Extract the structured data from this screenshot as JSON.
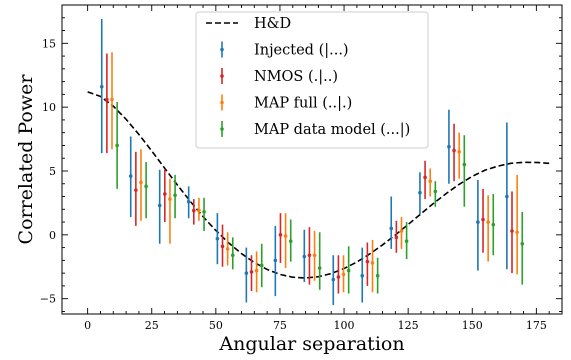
{
  "chart_data": {
    "type": "scatter",
    "title": "",
    "xlabel": "Angular separation",
    "ylabel": "Correlated Power",
    "xlim": [
      -10,
      185
    ],
    "ylim": [
      -6.2,
      18
    ],
    "xticks": [
      0,
      25,
      50,
      75,
      100,
      125,
      150,
      175
    ],
    "yticks": [
      -5,
      0,
      5,
      10,
      15
    ],
    "legend_position": "top-center",
    "curve": {
      "name": "H&D",
      "style": "dashed",
      "color": "#000000",
      "x": [
        0,
        5,
        10,
        15,
        20,
        25,
        30,
        35,
        40,
        45,
        50,
        55,
        60,
        65,
        70,
        75,
        80,
        85,
        90,
        95,
        100,
        105,
        110,
        115,
        120,
        125,
        130,
        135,
        140,
        145,
        150,
        155,
        160,
        165,
        170,
        175,
        180
      ],
      "y": [
        11.2,
        10.84,
        10.08,
        9.05,
        7.86,
        6.57,
        5.23,
        3.9,
        2.63,
        1.43,
        0.34,
        -0.63,
        -1.47,
        -2.17,
        -2.71,
        -3.1,
        -3.32,
        -3.38,
        -3.28,
        -3.03,
        -2.64,
        -2.13,
        -1.5,
        -0.79,
        -0.01,
        0.81,
        1.65,
        2.48,
        3.26,
        3.97,
        4.58,
        5.07,
        5.38,
        5.6,
        5.68,
        5.67,
        5.6
      ]
    },
    "bins_x": [
      8.5,
      19.8,
      31.1,
      42.4,
      53.6,
      64.9,
      76.2,
      87.5,
      98.8,
      110.1,
      121.4,
      132.6,
      143.9,
      155.2,
      166.5
    ],
    "series": [
      {
        "name": "Injected (|...)",
        "color": "#1f77b4",
        "y": [
          11.6,
          4.6,
          2.3,
          2.6,
          -0.3,
          -3.0,
          -2.0,
          -1.7,
          -3.5,
          -3.2,
          0.5,
          3.3,
          6.9,
          1.0,
          3.0
        ],
        "err_low": [
          6.4,
          1.4,
          -0.7,
          1.3,
          -2.3,
          -5.3,
          -4.8,
          -3.7,
          -5.5,
          -5.3,
          -1.1,
          1.6,
          4.0,
          -2.8,
          -2.7
        ],
        "err_high": [
          16.9,
          7.7,
          5.1,
          3.8,
          1.7,
          -1.0,
          0.7,
          0.4,
          -1.6,
          -1.0,
          3.0,
          4.9,
          9.8,
          4.3,
          8.8
        ]
      },
      {
        "name": "NMOS (.|..)",
        "color": "#d62728",
        "y": [
          10.6,
          3.5,
          3.2,
          1.9,
          -0.9,
          -2.9,
          0.0,
          -1.6,
          -3.3,
          -2.1,
          -0.2,
          4.5,
          6.6,
          1.2,
          0.3
        ],
        "err_low": [
          6.4,
          0.7,
          1.0,
          0.8,
          -2.5,
          -4.4,
          -2.2,
          -3.9,
          -4.6,
          -4.0,
          -1.4,
          2.8,
          4.2,
          -1.4,
          -3.0
        ],
        "err_high": [
          14.2,
          6.5,
          5.1,
          2.8,
          0.8,
          -1.6,
          1.7,
          0.6,
          -1.6,
          -0.6,
          1.1,
          5.8,
          8.7,
          3.6,
          3.4
        ]
      },
      {
        "name": "MAP full (..|.)",
        "color": "#ff7f0e",
        "y": [
          10.6,
          4.1,
          2.8,
          1.9,
          -1.1,
          -2.8,
          -0.1,
          -1.6,
          -3.1,
          -2.2,
          0.3,
          4.2,
          6.5,
          1.0,
          0.2
        ],
        "err_low": [
          6.7,
          1.1,
          -0.7,
          1.1,
          -2.4,
          -4.5,
          -2.6,
          -3.6,
          -4.5,
          -4.5,
          -1.1,
          3.0,
          4.4,
          -2.1,
          -3.1
        ],
        "err_high": [
          14.3,
          6.7,
          4.4,
          2.9,
          0.2,
          -1.3,
          1.7,
          0.3,
          -1.6,
          -0.4,
          1.4,
          5.2,
          8.0,
          3.1,
          4.7
        ]
      },
      {
        "name": "MAP data model (...|)",
        "color": "#2ca02c",
        "y": [
          7.0,
          3.8,
          3.1,
          1.8,
          -1.6,
          -2.4,
          -0.5,
          -2.6,
          -2.8,
          -3.2,
          -0.5,
          3.4,
          5.5,
          0.8,
          -0.7
        ],
        "err_low": [
          3.6,
          1.3,
          1.3,
          0.3,
          -2.7,
          -4.1,
          -2.1,
          -4.3,
          -4.6,
          -4.6,
          -1.9,
          2.2,
          2.2,
          -1.6,
          -3.9
        ],
        "err_high": [
          10.4,
          5.7,
          4.7,
          2.9,
          -0.2,
          -0.7,
          1.2,
          0.2,
          -0.9,
          -1.8,
          1.0,
          4.2,
          7.8,
          3.2,
          1.8
        ]
      }
    ]
  }
}
